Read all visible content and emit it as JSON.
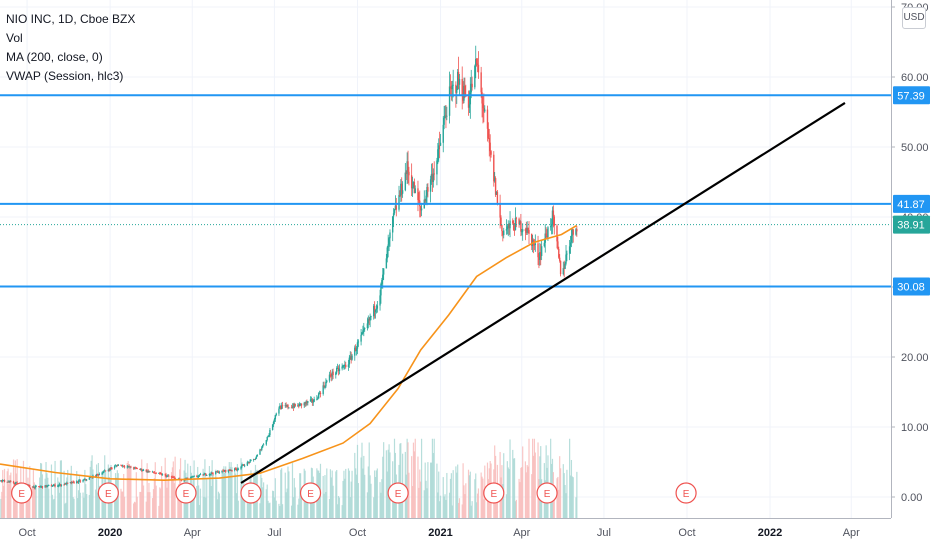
{
  "legend": {
    "symbol_line": "NIO INC, 1D, Cboe BZX",
    "volume": "Vol",
    "ma": "MA (200, close, 0)",
    "vwap": "VWAP (Session, hlc3)"
  },
  "currency_button": "USD",
  "colors": {
    "up": "#26a69a",
    "down": "#ef5350",
    "ma": "#f7931a",
    "hline": "#2196f3",
    "trendline": "#000000",
    "earnings": "#ef5350",
    "last_price": "#26a69a",
    "last_price_dash": "#26a69a"
  },
  "chart_data": {
    "type": "candlestick",
    "title": "NIO INC, 1D, Cboe BZX",
    "x_tick_labels": [
      "Oct",
      "2020",
      "Apr",
      "Jul",
      "Oct",
      "2021",
      "Apr",
      "Jul",
      "Oct",
      "2022",
      "Apr"
    ],
    "x_ticks": [
      "2019-10-01",
      "2020-01-01",
      "2020-04-01",
      "2020-07-01",
      "2020-10-01",
      "2021-01-01",
      "2021-04-01",
      "2021-07-01",
      "2021-10-01",
      "2022-01-01",
      "2022-04-01"
    ],
    "bold_x_labels": [
      "2020",
      "2021",
      "2022"
    ],
    "y_tick_labels": [
      "0.00",
      "10.00",
      "20.00",
      "30.00",
      "40.00",
      "50.00",
      "60.00",
      "70.00"
    ],
    "y_ticks": [
      0,
      10,
      20,
      30,
      40,
      50,
      60,
      70
    ],
    "ylim": [
      -3,
      71
    ],
    "xlim": [
      "2019-09-01",
      "2022-05-15"
    ],
    "price_path": [
      [
        "2019-09-01",
        2.4
      ],
      [
        "2019-09-20",
        1.9
      ],
      [
        "2019-10-10",
        1.4
      ],
      [
        "2019-11-05",
        1.7
      ],
      [
        "2019-12-01",
        2.3
      ],
      [
        "2019-12-20",
        3.3
      ],
      [
        "2020-01-10",
        4.6
      ],
      [
        "2020-02-05",
        3.9
      ],
      [
        "2020-03-01",
        3.1
      ],
      [
        "2020-03-20",
        2.4
      ],
      [
        "2020-04-10",
        3.1
      ],
      [
        "2020-05-01",
        3.6
      ],
      [
        "2020-05-20",
        4.0
      ],
      [
        "2020-06-10",
        5.5
      ],
      [
        "2020-06-25",
        9.0
      ],
      [
        "2020-07-05",
        12.8
      ],
      [
        "2020-07-25",
        13.0
      ],
      [
        "2020-08-15",
        13.8
      ],
      [
        "2020-09-01",
        17.4
      ],
      [
        "2020-09-20",
        19.0
      ],
      [
        "2020-10-10",
        24.0
      ],
      [
        "2020-10-25",
        28.5
      ],
      [
        "2020-11-10",
        40.0
      ],
      [
        "2020-11-25",
        47.0
      ],
      [
        "2020-12-10",
        41.0
      ],
      [
        "2020-12-28",
        48.0
      ],
      [
        "2021-01-10",
        57.0
      ],
      [
        "2021-01-20",
        59.5
      ],
      [
        "2021-02-01",
        56.5
      ],
      [
        "2021-02-10",
        62.0
      ],
      [
        "2021-02-25",
        49.0
      ],
      [
        "2021-03-10",
        38.0
      ],
      [
        "2021-03-25",
        39.0
      ],
      [
        "2021-04-05",
        38.5
      ],
      [
        "2021-04-20",
        34.5
      ],
      [
        "2021-05-05",
        40.0
      ],
      [
        "2021-05-15",
        31.5
      ],
      [
        "2021-05-25",
        37.0
      ],
      [
        "2021-06-01",
        38.91
      ]
    ],
    "ma200": [
      [
        "2019-09-01",
        4.7
      ],
      [
        "2019-11-01",
        3.5
      ],
      [
        "2020-01-01",
        2.6
      ],
      [
        "2020-03-01",
        2.4
      ],
      [
        "2020-05-01",
        2.7
      ],
      [
        "2020-06-15",
        3.4
      ],
      [
        "2020-08-01",
        5.5
      ],
      [
        "2020-09-15",
        7.7
      ],
      [
        "2020-10-15",
        10.5
      ],
      [
        "2020-11-15",
        15.5
      ],
      [
        "2020-12-10",
        21.0
      ],
      [
        "2021-01-10",
        26.0
      ],
      [
        "2021-02-10",
        31.5
      ],
      [
        "2021-03-15",
        34.2
      ],
      [
        "2021-04-15",
        36.4
      ],
      [
        "2021-05-15",
        37.5
      ],
      [
        "2021-06-01",
        38.8
      ]
    ],
    "horizontal_levels": [
      57.39,
      41.87,
      30.08
    ],
    "last_price": 38.91,
    "trendline": [
      [
        "2020-05-25",
        2.0
      ],
      [
        "2022-03-25",
        56.3
      ]
    ],
    "earnings_dates": [
      "2019-09-25",
      "2019-12-30",
      "2020-03-25",
      "2020-06-05",
      "2020-08-10",
      "2020-11-15",
      "2021-03-01",
      "2021-04-29",
      "2021-09-30"
    ],
    "earnings_marker": "E",
    "volume_area_top_fraction": 0.17
  }
}
